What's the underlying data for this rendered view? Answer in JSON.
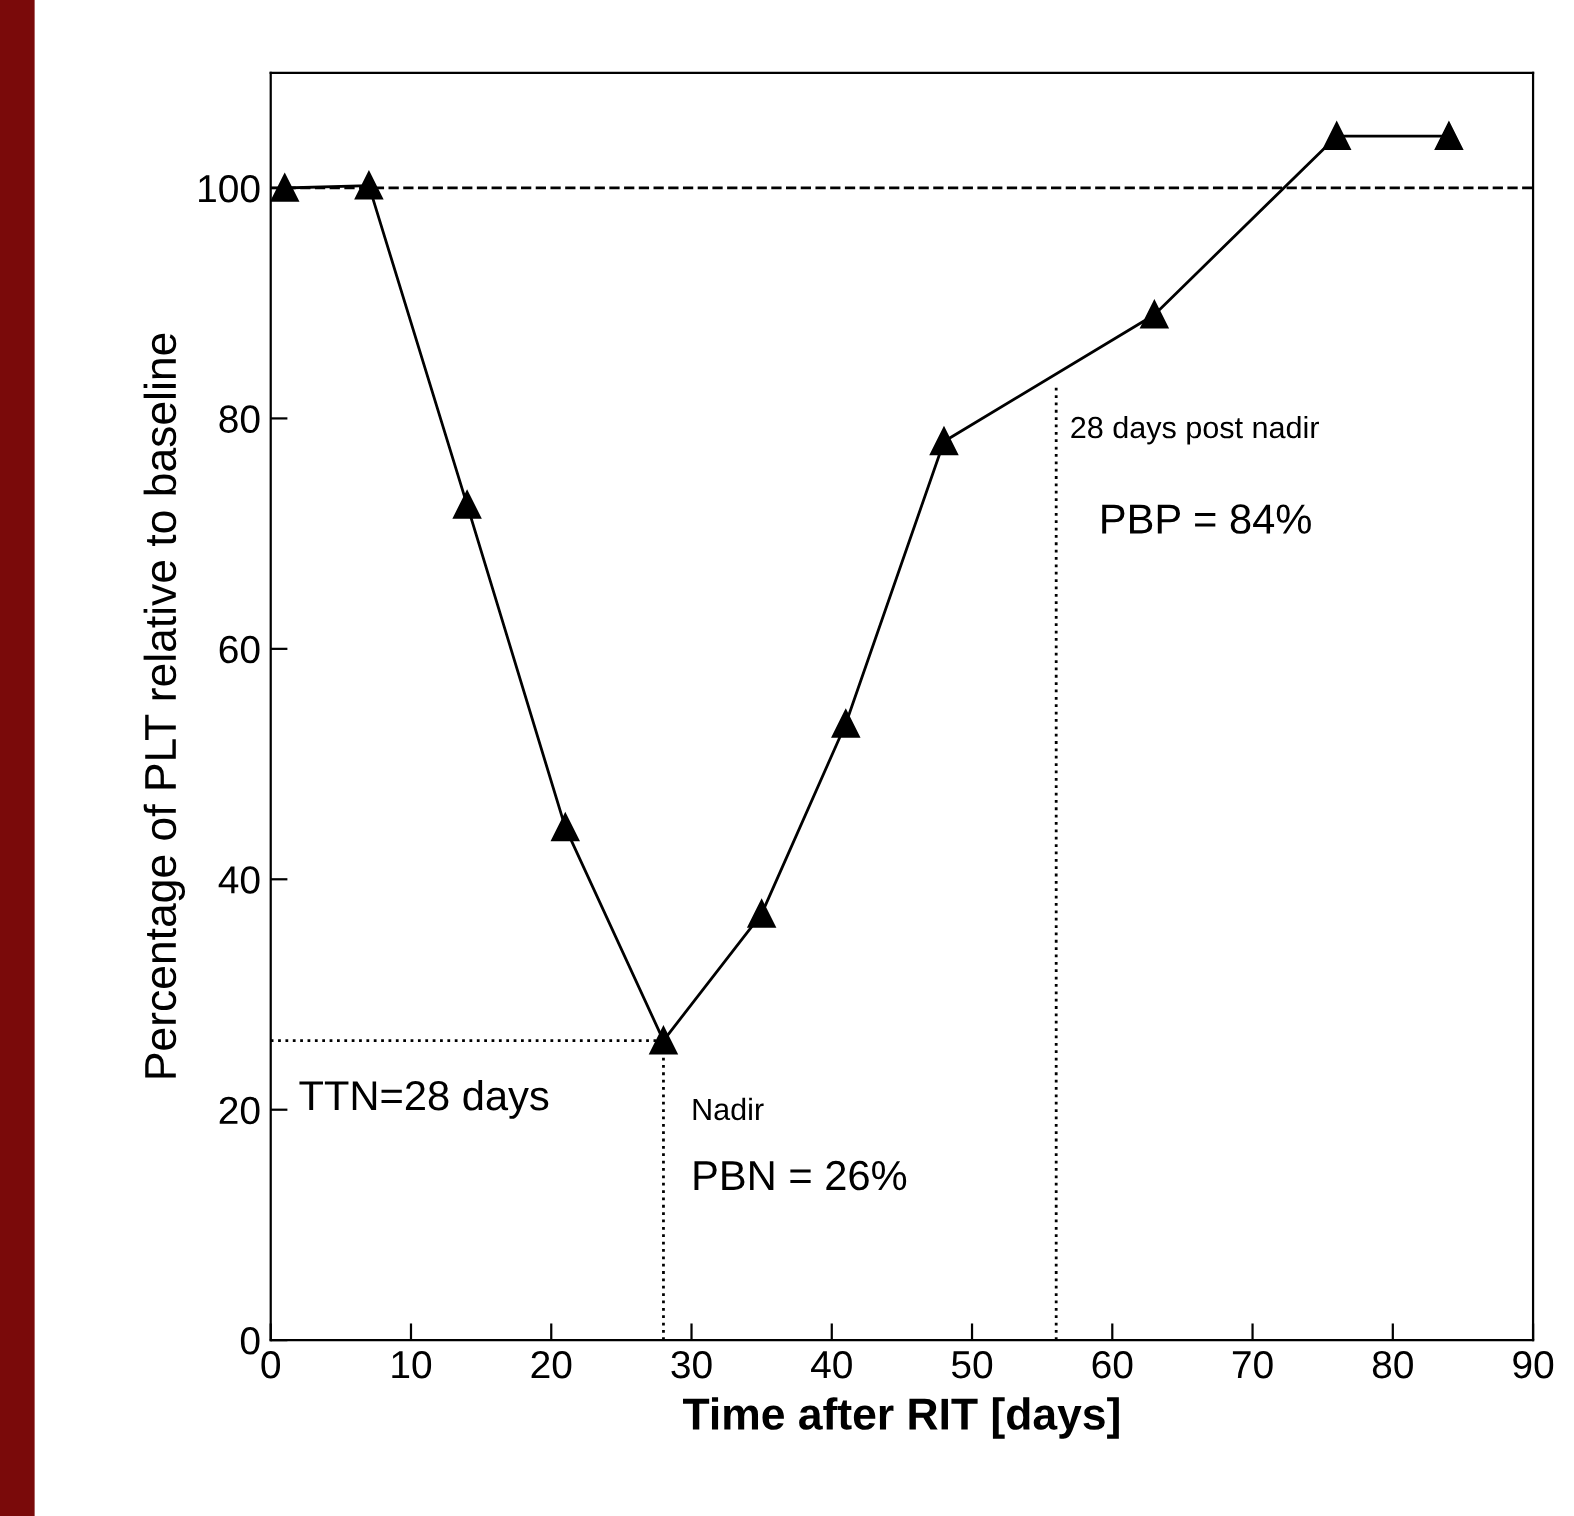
{
  "chart_data": {
    "type": "line",
    "xlabel": "Time after RIT [days]",
    "ylabel": "Percentage of PLT relative to baseline",
    "xlim": [
      0,
      90
    ],
    "ylim": [
      0,
      110
    ],
    "xticks": [
      0,
      10,
      20,
      30,
      40,
      50,
      60,
      70,
      80,
      90
    ],
    "yticks": [
      0,
      20,
      40,
      60,
      80,
      100
    ],
    "marker": "triangle",
    "grid": false,
    "series": [
      {
        "color": "#000000",
        "x": [
          1,
          7,
          14,
          21,
          28,
          35,
          41,
          48,
          63,
          76,
          84
        ],
        "values": [
          100,
          100.2,
          72.5,
          44.5,
          26,
          37,
          53.5,
          78,
          89,
          104.5,
          104.5
        ]
      },
      {
        "type": "line",
        "marker": "none",
        "line_style": "dotted",
        "color": "#000000",
        "x": [
          28,
          28
        ],
        "values": [
          0,
          26
        ]
      },
      {
        "type": "line",
        "marker": "none",
        "line_style": "dotted",
        "color": "#000000",
        "x": [
          0,
          28
        ],
        "values": [
          26,
          26
        ]
      },
      {
        "type": "line",
        "marker": "none",
        "line_style": "dotted",
        "color": "#000000",
        "x": [
          56,
          56
        ],
        "values": [
          0,
          83
        ]
      }
    ],
    "ref_lines": [
      {
        "axis": "y",
        "value": 100,
        "line_style": "dashed",
        "color": "#000000"
      }
    ],
    "annotations": [
      "TTN=28 days",
      "Nadir",
      "PBN = 26%",
      "28 days post nadir",
      "PBP = 84%"
    ]
  }
}
